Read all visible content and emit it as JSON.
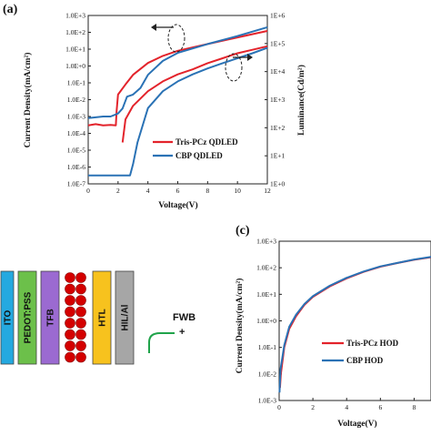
{
  "chart_data": [
    {
      "panel_label": "(a)",
      "type": "line",
      "xlabel": "Voltage(V)",
      "ylabel": "Current Density(mA/cm²)",
      "ylabel_right": "Luminance(Cd/m²)",
      "xlim": [
        0,
        12
      ],
      "ylim": [
        1e-07,
        1000
      ],
      "ylim_right": [
        1,
        1000000
      ],
      "yscale": "log",
      "x_ticks": [
        "0",
        "2",
        "4",
        "6",
        "8",
        "10",
        "12"
      ],
      "y_ticks": [
        "1.0E-7",
        "1.0E-6",
        "1.0E-5",
        "1.0E-4",
        "1.0E-3",
        "1.0E-2",
        "1.0E-1",
        "1.0E+0",
        "1.0E+1",
        "1.0E+2",
        "1.0E+3"
      ],
      "y_ticks_right": [
        "1E+0",
        "1E+1",
        "1E+2",
        "1E+3",
        "1E+4",
        "1E+5",
        "1E+6"
      ],
      "legend_position": "bottom-left",
      "colors": {
        "tris": "#e3232b",
        "cbp": "#2a72b5"
      },
      "series": [
        {
          "name": "Tris-PCz QDLED",
          "axis": "left",
          "color": "#e3232b",
          "x": [
            0,
            0.5,
            1.0,
            1.5,
            1.85,
            1.9,
            2.0,
            2.5,
            3.0,
            4.0,
            5.0,
            6.0,
            8.0,
            10.0,
            12.0
          ],
          "y": [
            0.0003,
            0.00035,
            0.0003,
            0.00032,
            0.0003,
            0.002,
            0.02,
            0.08,
            0.3,
            1.5,
            4,
            8,
            20,
            50,
            120
          ]
        },
        {
          "name": "CBP QDLED",
          "axis": "left",
          "color": "#2a72b5",
          "x": [
            0,
            1.0,
            1.5,
            2.0,
            2.3,
            2.6,
            3.0,
            3.5,
            4.0,
            5.0,
            6.0,
            8.0,
            10.0,
            12.0
          ],
          "y": [
            0.0008,
            0.001,
            0.001,
            0.0015,
            0.003,
            0.015,
            0.02,
            0.05,
            0.3,
            2,
            6,
            20,
            60,
            200
          ]
        },
        {
          "name": "Tris-PCz QDLED",
          "axis": "right",
          "color": "#e3232b",
          "x": [
            2.3,
            2.5,
            3,
            4,
            5,
            6,
            7,
            8,
            9,
            10,
            11,
            12
          ],
          "y": [
            30,
            200,
            600,
            2000,
            4500,
            8000,
            12000,
            20000,
            30000,
            45000,
            60000,
            80000
          ]
        },
        {
          "name": "CBP QDLED",
          "axis": "right",
          "color": "#2a72b5",
          "x": [
            0,
            2.0,
            2.8,
            3.0,
            3.3,
            4,
            5,
            6,
            7,
            8,
            9,
            10,
            11,
            12
          ],
          "y": [
            2,
            2,
            2,
            5,
            30,
            500,
            2000,
            4500,
            8000,
            13000,
            20000,
            30000,
            45000,
            70000
          ]
        }
      ]
    },
    {
      "panel_label": "(c)",
      "type": "line",
      "xlabel": "Voltage(V)",
      "ylabel": "Current Density(mA/cm²)",
      "xlim": [
        0,
        9
      ],
      "ylim": [
        0.001,
        1000
      ],
      "yscale": "log",
      "x_ticks": [
        "0",
        "2",
        "4",
        "6",
        "8"
      ],
      "y_ticks": [
        "1.0E-3",
        "1.0E-2",
        "1.0E-1",
        "1.0E+0",
        "1.0E+1",
        "1.0E+2",
        "1.0E+3"
      ],
      "legend_position": "bottom-right",
      "series": [
        {
          "name": "Tris-PCz HOD",
          "color": "#e3232b",
          "x": [
            0.05,
            0.1,
            0.3,
            0.6,
            1,
            1.5,
            2,
            3,
            4,
            5,
            6,
            7,
            8,
            9
          ],
          "y": [
            0.003,
            0.01,
            0.1,
            0.5,
            1.5,
            4,
            8,
            20,
            40,
            70,
            110,
            150,
            200,
            250
          ]
        },
        {
          "name": "CBP HOD",
          "color": "#2a72b5",
          "x": [
            0.02,
            0.08,
            0.3,
            0.6,
            1,
            1.5,
            2,
            3,
            4,
            5,
            6,
            7,
            8,
            9
          ],
          "y": [
            0.002,
            0.015,
            0.12,
            0.6,
            1.7,
            4.3,
            8.5,
            21,
            42,
            72,
            112,
            152,
            205,
            255
          ]
        }
      ]
    }
  ],
  "device_stack": {
    "layers": [
      {
        "label": "ITO",
        "color": "#25a9e0"
      },
      {
        "label": "PEDOT:PSS",
        "color": "#6cc04a"
      },
      {
        "label": "TFB",
        "color": "#9b6ad1"
      },
      {
        "label": "",
        "color": "#d40000",
        "kind": "qd-dots"
      },
      {
        "label": "HTL",
        "color": "#f7c21e"
      },
      {
        "label": "HIL/Al",
        "color": "#a6a6a6"
      }
    ],
    "bias_label": "FWB",
    "bias_sign": "+"
  }
}
